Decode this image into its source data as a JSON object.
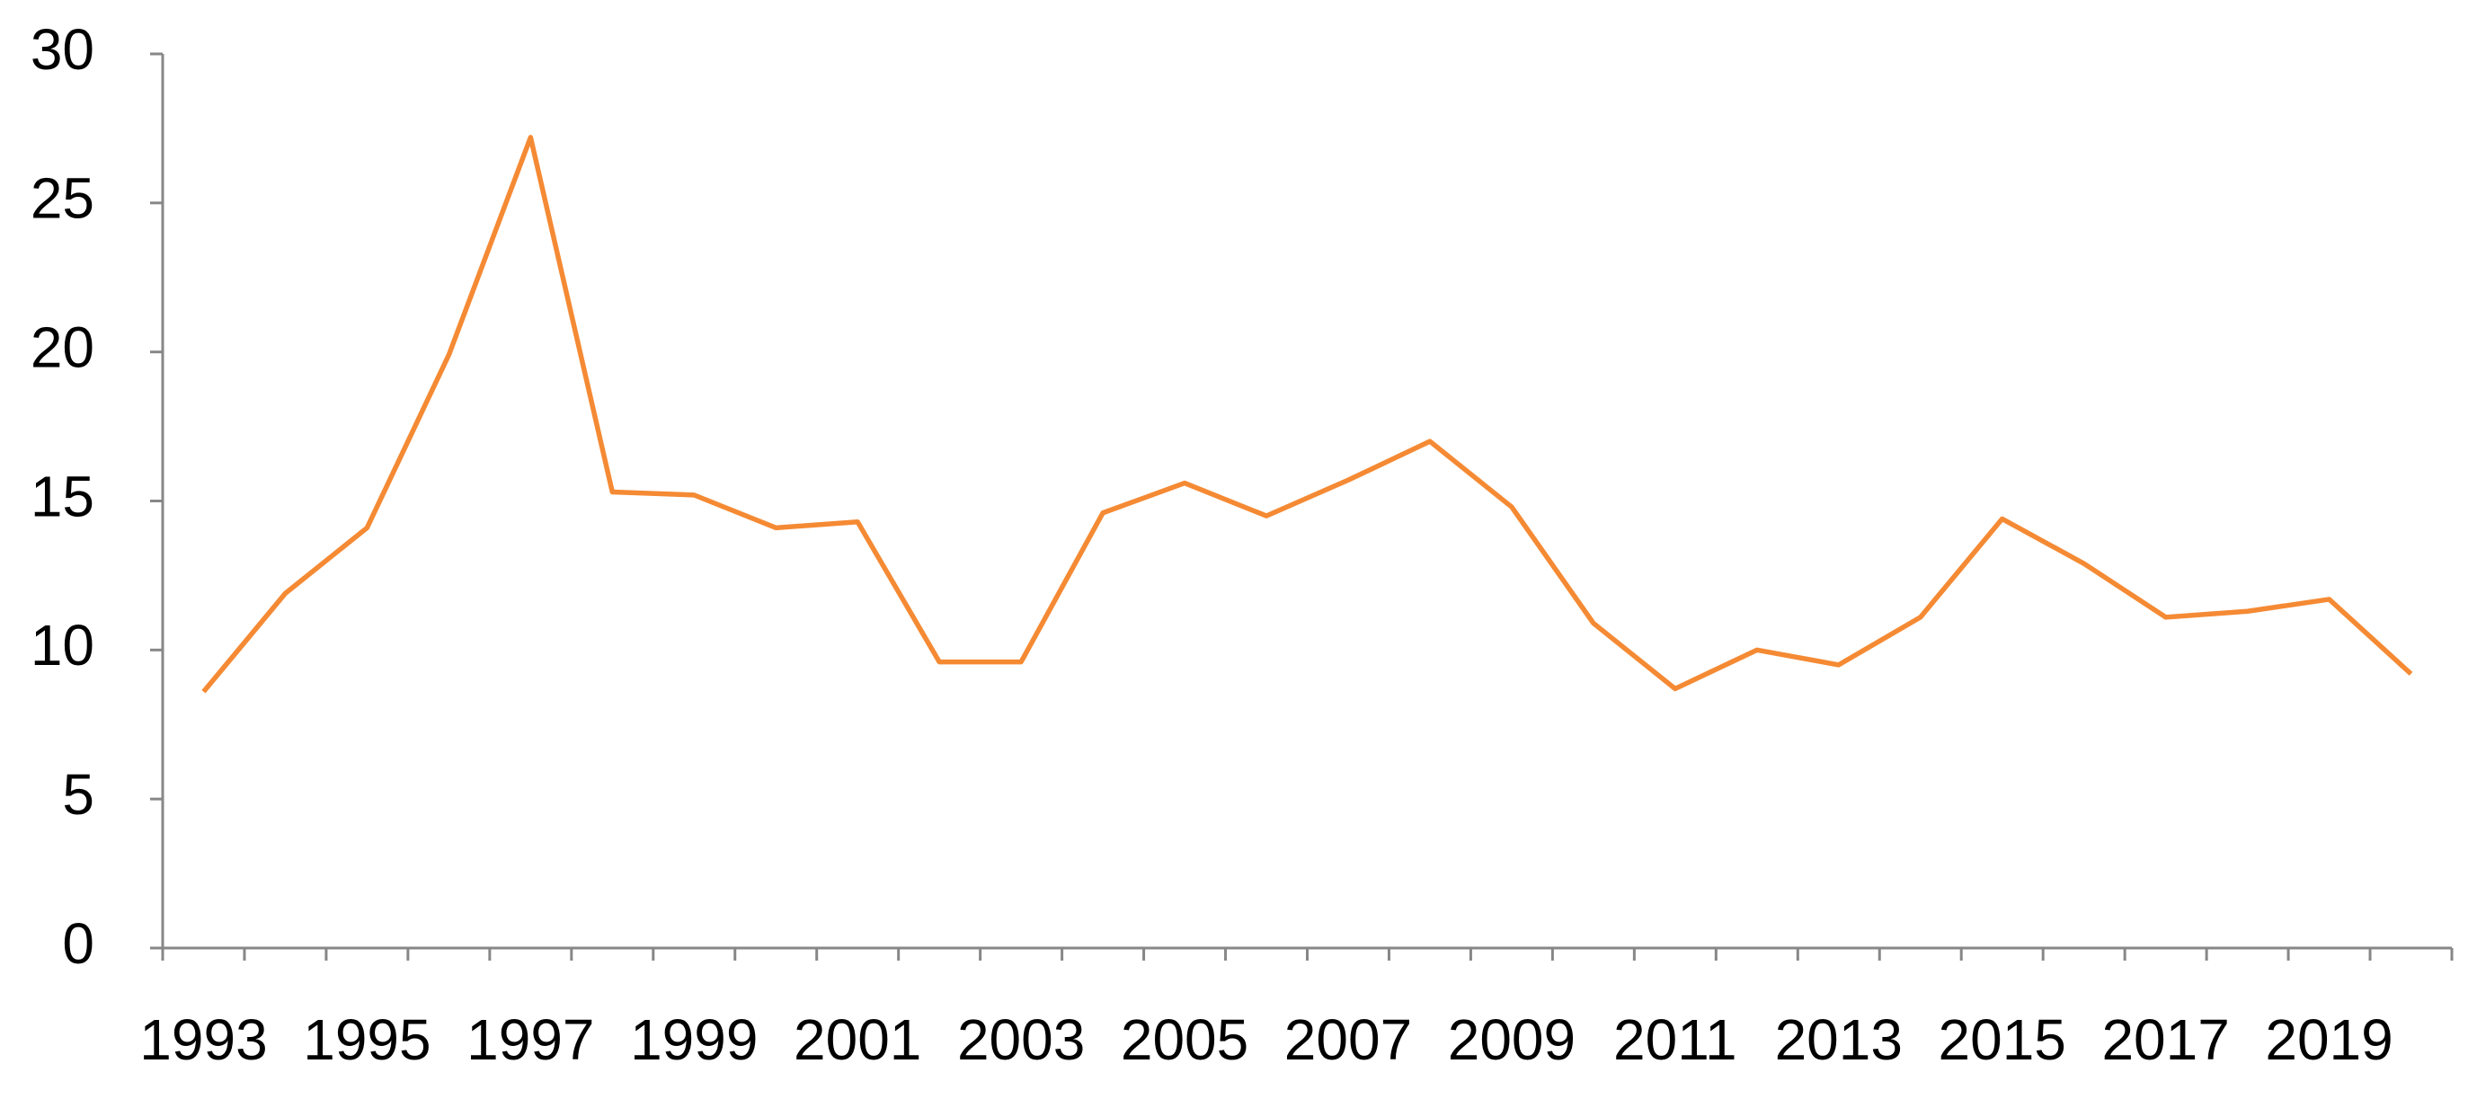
{
  "chart_data": {
    "type": "line",
    "categories": [
      "1993",
      null,
      "1995",
      null,
      "1997",
      null,
      "1999",
      null,
      "2001",
      null,
      "2003",
      null,
      "2005",
      null,
      "2007",
      null,
      "2009",
      null,
      "2011",
      null,
      "2013",
      null,
      "2015",
      null,
      "2017",
      null,
      "2019",
      null
    ],
    "values": [
      8.6,
      11.9,
      14.1,
      19.9,
      27.2,
      15.3,
      15.2,
      14.1,
      14.3,
      9.6,
      9.6,
      14.6,
      15.6,
      14.5,
      15.7,
      17.0,
      14.8,
      10.9,
      8.7,
      10.0,
      9.5,
      11.1,
      14.4,
      12.9,
      11.1,
      11.3,
      11.7,
      9.2
    ],
    "color": "#f58a34",
    "ylim": [
      0,
      30
    ],
    "yticks": [
      0,
      5,
      10,
      15,
      20,
      25,
      30
    ],
    "grid": false
  }
}
